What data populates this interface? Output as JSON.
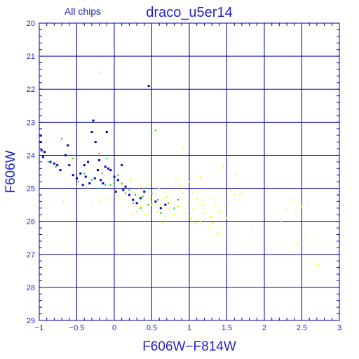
{
  "colors": {
    "frame": "#0000aa",
    "grid": "#0000aa",
    "text": "#2222cc",
    "blue": "#0000cc",
    "green": "#00cc00",
    "yellow": "#ffff00"
  },
  "chart_data": {
    "type": "scatter",
    "title": "draco_u5er14",
    "subtitle": "All chips",
    "xlabel": "F606W−F814W",
    "ylabel": "F606W",
    "xlim": [
      -1,
      3
    ],
    "ylim": [
      29,
      20
    ],
    "y_inverted": true,
    "grid": true,
    "xticks": [
      -1,
      -0.5,
      0,
      0.5,
      1,
      1.5,
      2,
      2.5,
      3
    ],
    "xtick_labels": [
      "−1",
      "−0.5",
      "0",
      "0.5",
      "1",
      "1.5",
      "2",
      "2.5",
      "3"
    ],
    "yticks": [
      20,
      21,
      22,
      23,
      24,
      25,
      26,
      27,
      28,
      29
    ],
    "ytick_labels": [
      "20",
      "21",
      "22",
      "23",
      "24",
      "25",
      "26",
      "27",
      "28",
      "29"
    ],
    "series": [
      {
        "color": "#0000cc",
        "points": [
          [
            -0.98,
            23.4
          ],
          [
            -0.98,
            23.6
          ],
          [
            -0.97,
            23.85
          ],
          [
            -0.95,
            24.05
          ],
          [
            -0.93,
            23.9
          ],
          [
            -0.85,
            24.2
          ],
          [
            -0.8,
            24.25
          ],
          [
            -0.76,
            24.3
          ],
          [
            -0.72,
            24.45
          ],
          [
            -0.65,
            24.0
          ],
          [
            -0.6,
            24.3
          ],
          [
            -0.55,
            24.6
          ],
          [
            -0.5,
            24.7
          ],
          [
            -0.45,
            24.55
          ],
          [
            -0.42,
            24.9
          ],
          [
            -0.38,
            24.65
          ],
          [
            -0.35,
            24.2
          ],
          [
            -0.33,
            24.85
          ],
          [
            -0.3,
            23.3
          ],
          [
            -0.28,
            22.95
          ],
          [
            -0.26,
            24.7
          ],
          [
            -0.22,
            24.45
          ],
          [
            -0.2,
            24.15
          ],
          [
            -0.18,
            24.75
          ],
          [
            -0.15,
            24.85
          ],
          [
            -0.12,
            24.35
          ],
          [
            -0.1,
            23.3
          ],
          [
            -0.08,
            24.4
          ],
          [
            -0.05,
            24.45
          ],
          [
            0.0,
            24.65
          ],
          [
            0.05,
            24.75
          ],
          [
            0.1,
            24.3
          ],
          [
            0.12,
            25.05
          ],
          [
            0.15,
            24.95
          ],
          [
            0.2,
            25.2
          ],
          [
            0.25,
            25.35
          ],
          [
            0.3,
            25.45
          ],
          [
            0.35,
            25.3
          ],
          [
            0.4,
            25.1
          ],
          [
            0.46,
            21.9
          ],
          [
            0.55,
            25.4
          ],
          [
            0.62,
            25.6
          ],
          [
            0.68,
            25.5
          ],
          [
            -0.4,
            24.3
          ],
          [
            -0.62,
            23.7
          ],
          [
            -0.25,
            23.6
          ],
          [
            0.02,
            25.1
          ]
        ]
      },
      {
        "color": "#00cc00",
        "points": [
          [
            -0.88,
            24.2
          ],
          [
            -0.78,
            24.35
          ],
          [
            -0.7,
            23.5
          ],
          [
            -0.55,
            24.1
          ],
          [
            -0.48,
            24.8
          ],
          [
            -0.4,
            24.55
          ],
          [
            -0.36,
            25.0
          ],
          [
            -0.3,
            24.75
          ],
          [
            -0.22,
            25.0
          ],
          [
            -0.16,
            24.55
          ],
          [
            -0.12,
            24.9
          ],
          [
            -0.1,
            24.1
          ],
          [
            -0.05,
            24.9
          ],
          [
            0.0,
            24.85
          ],
          [
            0.05,
            24.6
          ],
          [
            0.1,
            24.85
          ],
          [
            0.15,
            25.15
          ],
          [
            0.2,
            25.05
          ],
          [
            0.25,
            25.45
          ],
          [
            0.28,
            25.2
          ],
          [
            0.35,
            25.6
          ],
          [
            0.38,
            25.25
          ],
          [
            0.45,
            25.5
          ],
          [
            0.5,
            25.15
          ],
          [
            0.55,
            23.25
          ],
          [
            0.58,
            25.35
          ],
          [
            0.62,
            25.75
          ],
          [
            0.72,
            25.45
          ],
          [
            0.8,
            25.6
          ],
          [
            0.85,
            25.35
          ],
          [
            -0.2,
            23.95
          ],
          [
            0.42,
            25.0
          ]
        ]
      },
      {
        "color": "#ffff00",
        "points": [
          [
            -0.68,
            25.4
          ],
          [
            -0.5,
            24.95
          ],
          [
            -0.3,
            25.45
          ],
          [
            -0.2,
            21.5
          ],
          [
            -0.18,
            25.4
          ],
          [
            -0.1,
            25.3
          ],
          [
            0.0,
            25.1
          ],
          [
            0.05,
            25.25
          ],
          [
            0.1,
            24.9
          ],
          [
            0.15,
            25.35
          ],
          [
            0.2,
            25.55
          ],
          [
            0.22,
            24.75
          ],
          [
            0.3,
            25.7
          ],
          [
            0.35,
            25.55
          ],
          [
            0.4,
            25.8
          ],
          [
            0.45,
            24.9
          ],
          [
            0.48,
            25.3
          ],
          [
            0.5,
            25.5
          ],
          [
            0.52,
            23.35
          ],
          [
            0.55,
            25.15
          ],
          [
            0.58,
            25.7
          ],
          [
            0.6,
            25.0
          ],
          [
            0.62,
            25.5
          ],
          [
            0.65,
            25.3
          ],
          [
            0.68,
            25.85
          ],
          [
            0.7,
            25.25
          ],
          [
            0.72,
            25.6
          ],
          [
            0.75,
            25.4
          ],
          [
            0.78,
            25.05
          ],
          [
            0.8,
            25.8
          ],
          [
            0.82,
            24.7
          ],
          [
            0.85,
            25.55
          ],
          [
            0.88,
            24.95
          ],
          [
            0.9,
            25.35
          ],
          [
            0.92,
            25.15
          ],
          [
            0.95,
            25.75
          ],
          [
            0.98,
            25.45
          ],
          [
            1.0,
            24.8
          ],
          [
            1.02,
            25.9
          ],
          [
            1.05,
            25.6
          ],
          [
            1.08,
            26.05
          ],
          [
            1.1,
            25.3
          ],
          [
            1.12,
            25.95
          ],
          [
            1.15,
            24.65
          ],
          [
            1.18,
            25.5
          ],
          [
            1.2,
            25.75
          ],
          [
            1.25,
            26.15
          ],
          [
            1.28,
            25.85
          ],
          [
            1.3,
            26.05
          ],
          [
            1.32,
            25.35
          ],
          [
            1.35,
            25.55
          ],
          [
            1.4,
            25.25
          ],
          [
            1.42,
            25.7
          ],
          [
            1.45,
            24.35
          ],
          [
            1.48,
            25.55
          ],
          [
            1.5,
            25.9
          ],
          [
            1.55,
            25.05
          ],
          [
            1.6,
            25.2
          ],
          [
            1.62,
            24.6
          ],
          [
            1.68,
            25.15
          ],
          [
            1.85,
            26.25
          ],
          [
            2.22,
            26.0
          ],
          [
            2.3,
            25.65
          ],
          [
            2.38,
            25.35
          ],
          [
            2.45,
            26.7
          ],
          [
            2.5,
            25.55
          ],
          [
            2.58,
            25.45
          ],
          [
            2.72,
            27.3
          ],
          [
            2.55,
            26.5
          ],
          [
            0.92,
            23.8
          ],
          [
            0.35,
            24.95
          ],
          [
            0.25,
            25.8
          ],
          [
            0.65,
            26.05
          ],
          [
            1.15,
            26.0
          ],
          [
            1.05,
            25.15
          ],
          [
            1.38,
            26.4
          ],
          [
            2.48,
            26.3
          ],
          [
            2.42,
            25.7
          ]
        ]
      }
    ]
  }
}
